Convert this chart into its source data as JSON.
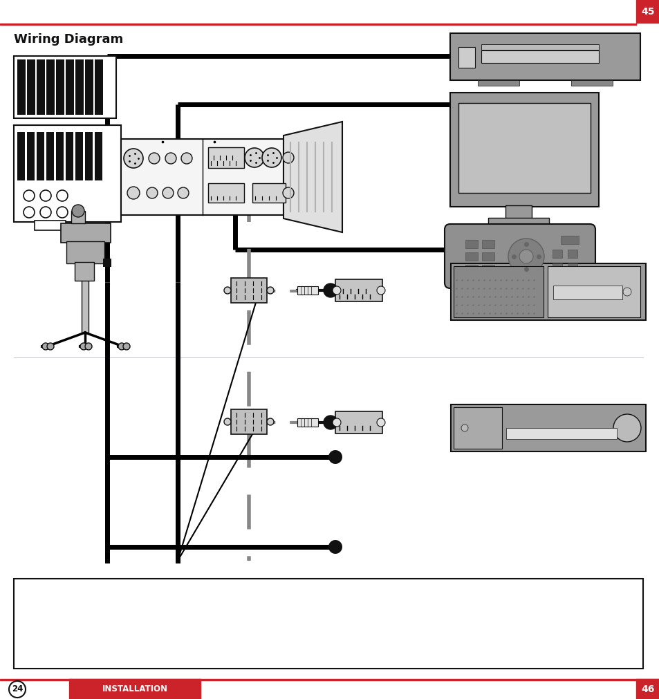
{
  "title": "Wiring Diagram",
  "page_left": "24",
  "page_right": "46",
  "footer_text": "INSTALLATION",
  "page_number_top": "45",
  "bg_color": "#ffffff",
  "red_color": "#cc2229",
  "dark_color": "#111111",
  "gray_color": "#888888",
  "light_gray": "#b0b0b0",
  "med_gray": "#999999",
  "panel_gray": "#aaaaaa",
  "device_gray": "#9a9a9a"
}
